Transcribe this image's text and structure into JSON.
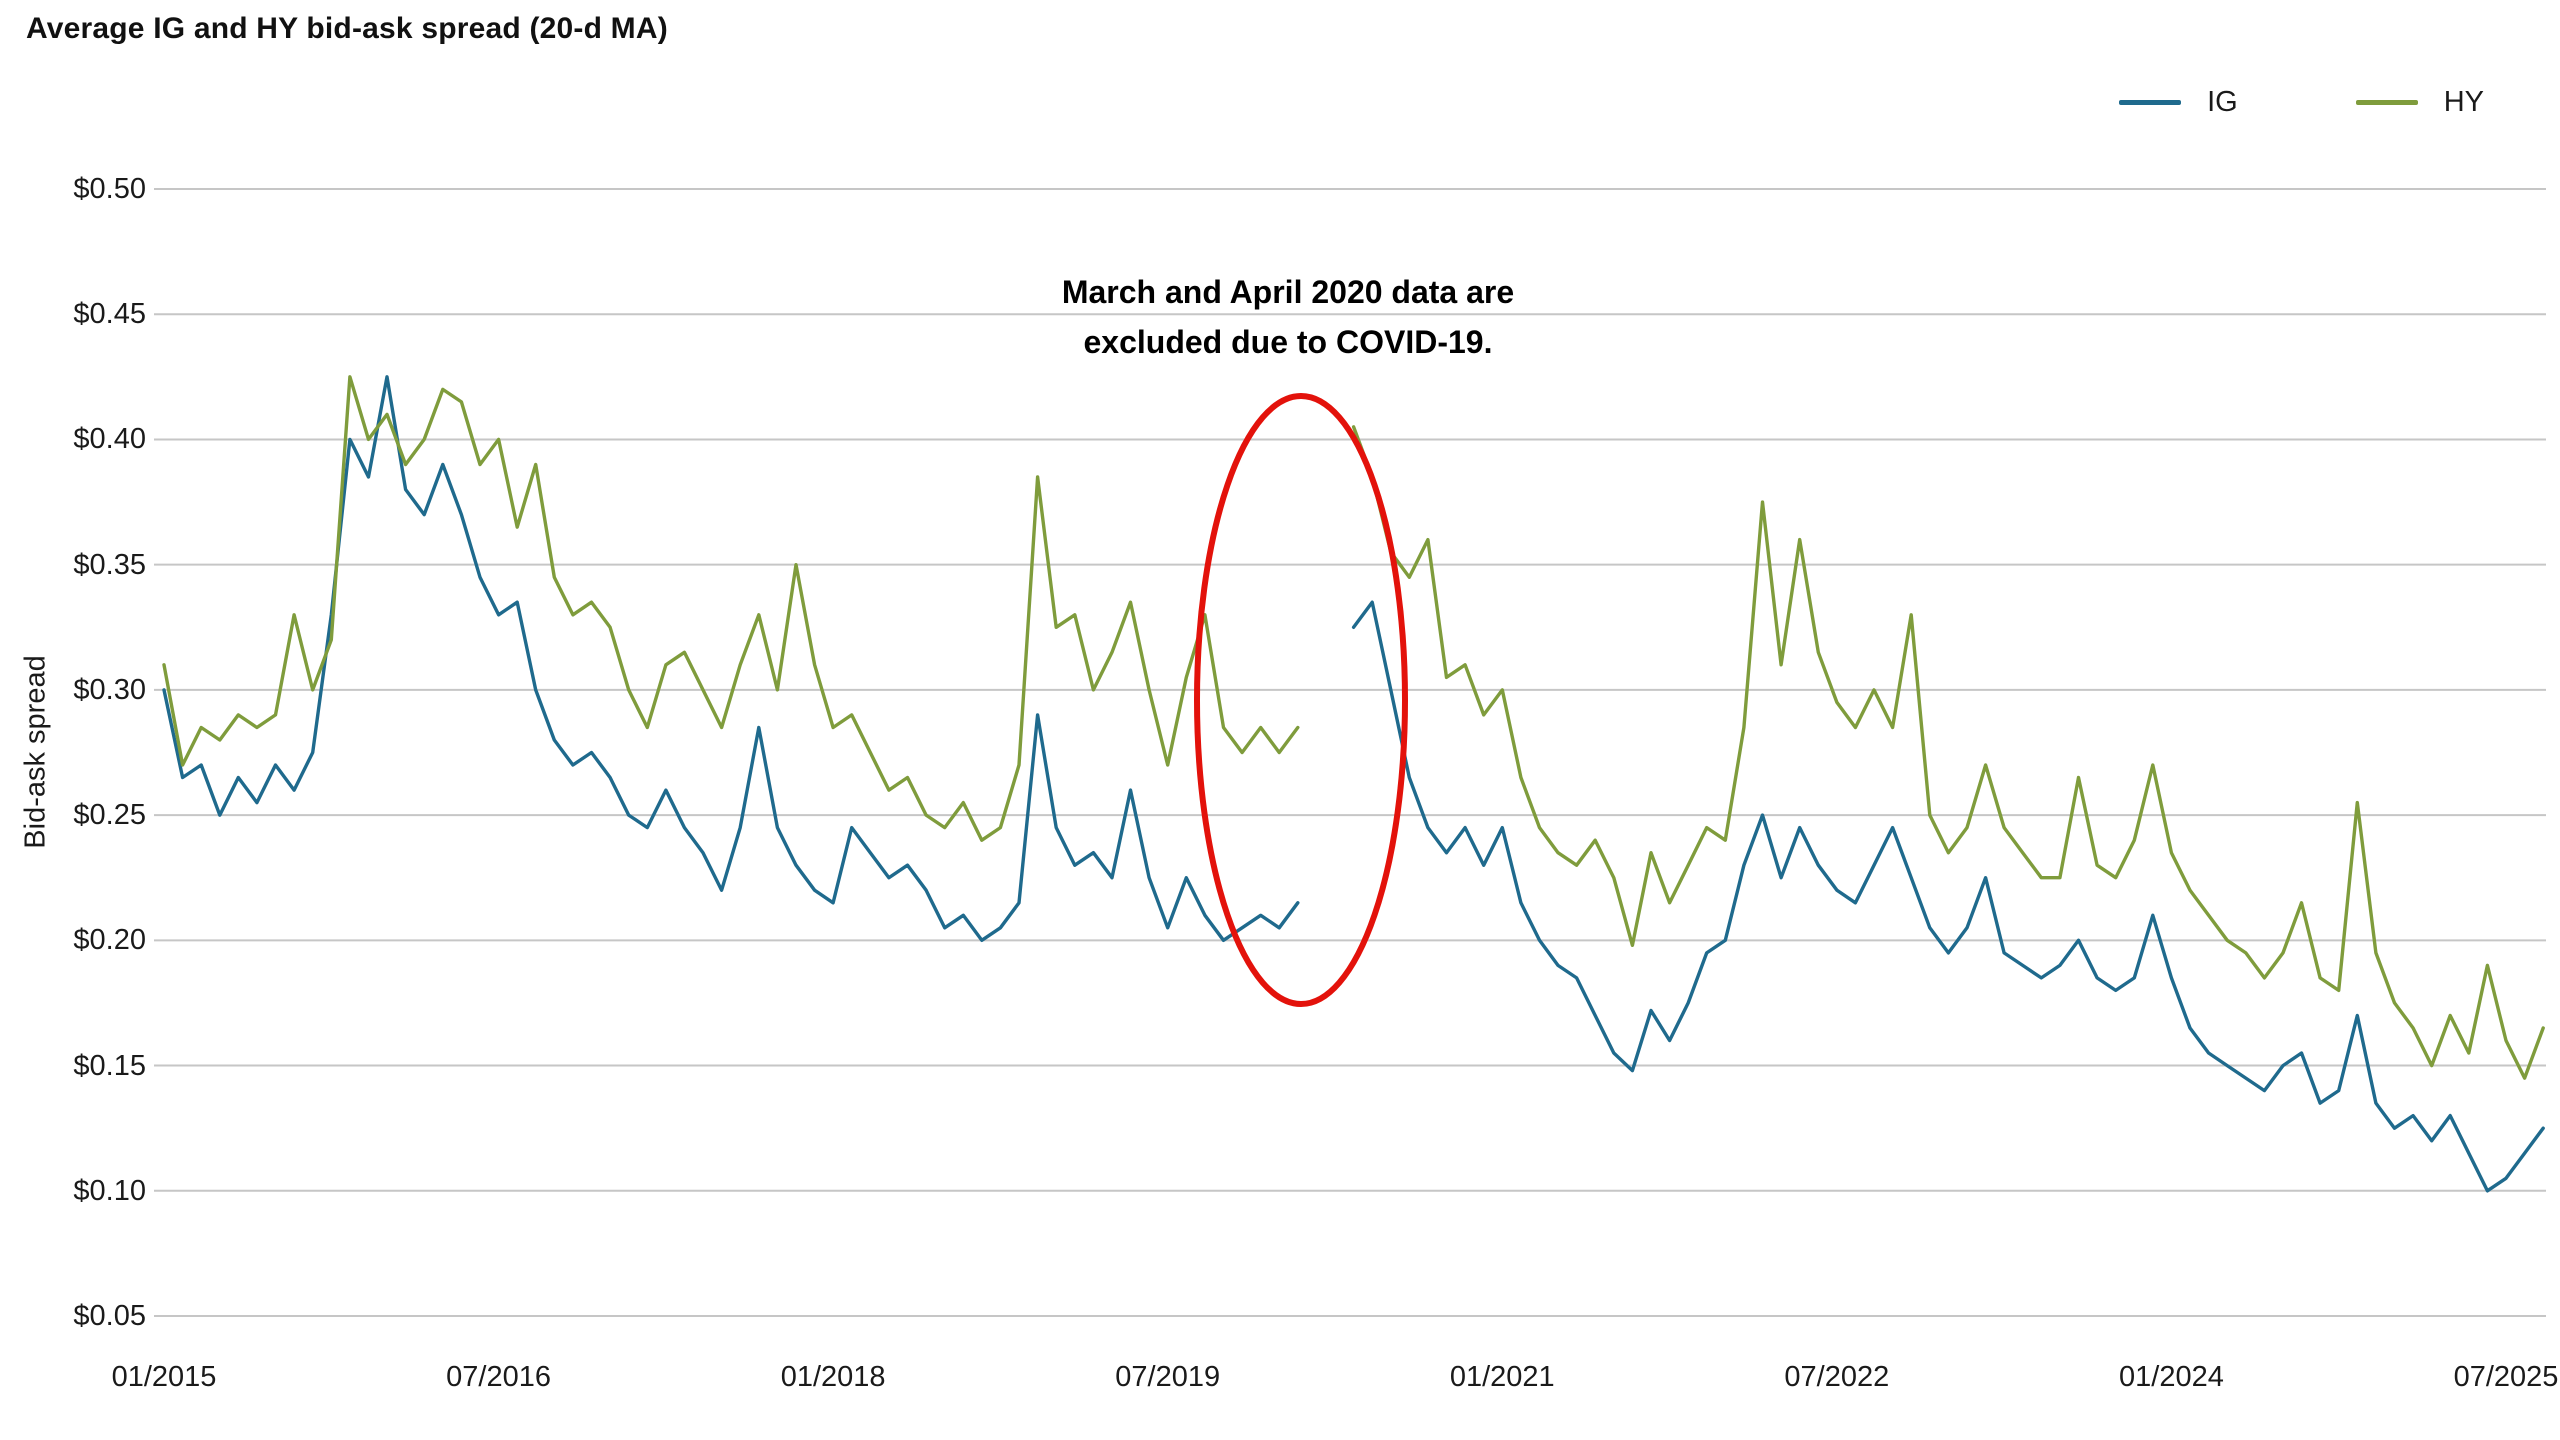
{
  "annotation": {
    "line1": "March and April 2020 data are",
    "line2": "excluded due to COVID-19.",
    "ellipse_color": "#e3120b"
  },
  "y_axis": {
    "ticks": [
      {
        "label": "$0.50",
        "value": 0.5
      },
      {
        "label": "$0.45",
        "value": 0.45
      },
      {
        "label": "$0.40",
        "value": 0.4
      },
      {
        "label": "$0.35",
        "value": 0.35
      },
      {
        "label": "$0.30",
        "value": 0.3
      },
      {
        "label": "$0.25",
        "value": 0.25
      },
      {
        "label": "$0.20",
        "value": 0.2
      },
      {
        "label": "$0.15",
        "value": 0.15
      },
      {
        "label": "$0.10",
        "value": 0.1
      },
      {
        "label": "$0.05",
        "value": 0.05
      }
    ]
  },
  "x_axis": {
    "ticks": [
      {
        "label": "01/2015",
        "month_index": 0
      },
      {
        "label": "07/2016",
        "month_index": 18
      },
      {
        "label": "01/2018",
        "month_index": 36
      },
      {
        "label": "07/2019",
        "month_index": 54
      },
      {
        "label": "01/2021",
        "month_index": 72
      },
      {
        "label": "07/2022",
        "month_index": 90
      },
      {
        "label": "01/2024",
        "month_index": 108
      },
      {
        "label": "07/2025",
        "month_index": 126
      }
    ]
  },
  "chart_data": {
    "type": "line",
    "title": "Average IG and HY bid-ask spread (20-d MA)",
    "ylabel": "Bid-ask spread",
    "ylim": [
      0.05,
      0.5
    ],
    "grid": "horizontal",
    "legend_position": "top-right",
    "x_start": "2015-01",
    "x_end": "2025-09",
    "x_interval": "monthly",
    "gap": "values are null for 2020-03 and 2020-04 (COVID-19 exclusion shown by red ellipse)",
    "series": [
      {
        "name": "IG",
        "color": "#1f6a8d",
        "values": [
          0.3,
          0.265,
          0.27,
          0.25,
          0.265,
          0.255,
          0.27,
          0.26,
          0.275,
          0.33,
          0.4,
          0.385,
          0.425,
          0.38,
          0.37,
          0.39,
          0.37,
          0.345,
          0.33,
          0.335,
          0.3,
          0.28,
          0.27,
          0.275,
          0.265,
          0.25,
          0.245,
          0.26,
          0.245,
          0.235,
          0.22,
          0.245,
          0.285,
          0.245,
          0.23,
          0.22,
          0.215,
          0.245,
          0.235,
          0.225,
          0.23,
          0.22,
          0.205,
          0.21,
          0.2,
          0.205,
          0.215,
          0.29,
          0.245,
          0.23,
          0.235,
          0.225,
          0.26,
          0.225,
          0.205,
          0.225,
          0.21,
          0.2,
          0.205,
          0.21,
          0.205,
          0.215,
          null,
          null,
          0.325,
          0.335,
          0.3,
          0.265,
          0.245,
          0.235,
          0.245,
          0.23,
          0.245,
          0.215,
          0.2,
          0.19,
          0.185,
          0.17,
          0.155,
          0.148,
          0.172,
          0.16,
          0.175,
          0.195,
          0.2,
          0.23,
          0.25,
          0.225,
          0.245,
          0.23,
          0.22,
          0.215,
          0.23,
          0.245,
          0.225,
          0.205,
          0.195,
          0.205,
          0.225,
          0.195,
          0.19,
          0.185,
          0.19,
          0.2,
          0.185,
          0.18,
          0.185,
          0.21,
          0.185,
          0.165,
          0.155,
          0.15,
          0.145,
          0.14,
          0.15,
          0.155,
          0.135,
          0.14,
          0.17,
          0.135,
          0.125,
          0.13,
          0.12,
          0.13,
          0.115,
          0.1,
          0.105,
          0.115,
          0.125
        ]
      },
      {
        "name": "HY",
        "color": "#7f9c3c",
        "values": [
          0.31,
          0.27,
          0.285,
          0.28,
          0.29,
          0.285,
          0.29,
          0.33,
          0.3,
          0.32,
          0.425,
          0.4,
          0.41,
          0.39,
          0.4,
          0.42,
          0.415,
          0.39,
          0.4,
          0.365,
          0.39,
          0.345,
          0.33,
          0.335,
          0.325,
          0.3,
          0.285,
          0.31,
          0.315,
          0.3,
          0.285,
          0.31,
          0.33,
          0.3,
          0.35,
          0.31,
          0.285,
          0.29,
          0.275,
          0.26,
          0.265,
          0.25,
          0.245,
          0.255,
          0.24,
          0.245,
          0.27,
          0.385,
          0.325,
          0.33,
          0.3,
          0.315,
          0.335,
          0.3,
          0.27,
          0.305,
          0.33,
          0.285,
          0.275,
          0.285,
          0.275,
          0.285,
          null,
          null,
          0.405,
          0.385,
          0.355,
          0.345,
          0.36,
          0.305,
          0.31,
          0.29,
          0.3,
          0.265,
          0.245,
          0.235,
          0.23,
          0.24,
          0.225,
          0.198,
          0.235,
          0.215,
          0.23,
          0.245,
          0.24,
          0.285,
          0.375,
          0.31,
          0.36,
          0.315,
          0.295,
          0.285,
          0.3,
          0.285,
          0.33,
          0.25,
          0.235,
          0.245,
          0.27,
          0.245,
          0.235,
          0.225,
          0.225,
          0.265,
          0.23,
          0.225,
          0.24,
          0.27,
          0.235,
          0.22,
          0.21,
          0.2,
          0.195,
          0.185,
          0.195,
          0.215,
          0.185,
          0.18,
          0.255,
          0.195,
          0.175,
          0.165,
          0.15,
          0.17,
          0.155,
          0.19,
          0.16,
          0.145,
          0.165
        ]
      }
    ]
  }
}
